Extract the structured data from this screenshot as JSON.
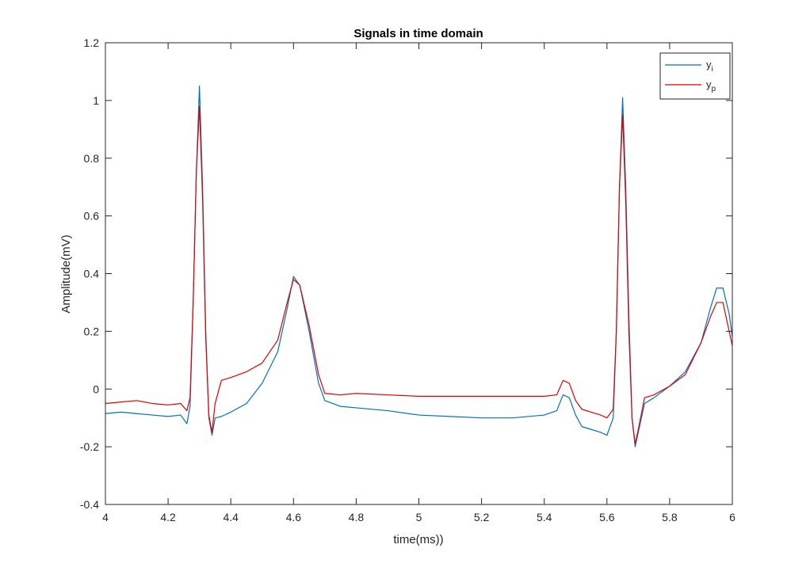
{
  "chart_data": {
    "type": "line",
    "title": "Signals in time domain",
    "xlabel": "time(ms))",
    "ylabel": "Amplitude(mV)",
    "xlim": [
      4,
      6
    ],
    "ylim": [
      -0.4,
      1.2
    ],
    "xticks": [
      "4",
      "4.2",
      "4.4",
      "4.6",
      "4.8",
      "5",
      "5.2",
      "5.4",
      "5.6",
      "5.8",
      "6"
    ],
    "yticks": [
      "-0.4",
      "-0.2",
      "0",
      "0.2",
      "0.4",
      "0.6",
      "0.8",
      "1",
      "1.2"
    ],
    "legend_position": "top-right",
    "grid": false,
    "series": [
      {
        "name": "y",
        "subscript": "i",
        "color": "#0072BD",
        "x": [
          4.0,
          4.05,
          4.1,
          4.15,
          4.2,
          4.24,
          4.26,
          4.27,
          4.28,
          4.29,
          4.3,
          4.31,
          4.32,
          4.33,
          4.34,
          4.35,
          4.37,
          4.4,
          4.45,
          4.5,
          4.55,
          4.58,
          4.6,
          4.62,
          4.65,
          4.68,
          4.7,
          4.75,
          4.8,
          4.9,
          5.0,
          5.1,
          5.2,
          5.3,
          5.4,
          5.44,
          5.46,
          5.48,
          5.5,
          5.52,
          5.55,
          5.58,
          5.6,
          5.62,
          5.63,
          5.64,
          5.65,
          5.66,
          5.67,
          5.68,
          5.69,
          5.7,
          5.72,
          5.75,
          5.8,
          5.85,
          5.9,
          5.93,
          5.95,
          5.97,
          5.99,
          6.0
        ],
        "values": [
          -0.085,
          -0.08,
          -0.085,
          -0.09,
          -0.095,
          -0.09,
          -0.12,
          -0.06,
          0.3,
          0.75,
          1.05,
          0.7,
          0.2,
          -0.1,
          -0.16,
          -0.1,
          -0.095,
          -0.08,
          -0.05,
          0.02,
          0.13,
          0.28,
          0.39,
          0.36,
          0.2,
          0.02,
          -0.04,
          -0.06,
          -0.065,
          -0.075,
          -0.09,
          -0.095,
          -0.1,
          -0.1,
          -0.09,
          -0.075,
          -0.02,
          -0.03,
          -0.09,
          -0.13,
          -0.14,
          -0.15,
          -0.16,
          -0.1,
          0.2,
          0.7,
          1.01,
          0.7,
          0.25,
          -0.1,
          -0.2,
          -0.15,
          -0.05,
          -0.03,
          0.01,
          0.06,
          0.16,
          0.28,
          0.35,
          0.35,
          0.26,
          0.18
        ]
      },
      {
        "name": "y",
        "subscript": "p",
        "color": "#E00000",
        "x": [
          4.0,
          4.05,
          4.1,
          4.15,
          4.2,
          4.24,
          4.26,
          4.27,
          4.28,
          4.29,
          4.3,
          4.31,
          4.32,
          4.33,
          4.34,
          4.35,
          4.37,
          4.4,
          4.45,
          4.5,
          4.55,
          4.58,
          4.6,
          4.62,
          4.65,
          4.68,
          4.7,
          4.75,
          4.8,
          4.9,
          5.0,
          5.1,
          5.2,
          5.3,
          5.4,
          5.44,
          5.46,
          5.48,
          5.5,
          5.52,
          5.55,
          5.58,
          5.6,
          5.62,
          5.63,
          5.64,
          5.65,
          5.66,
          5.67,
          5.68,
          5.69,
          5.7,
          5.72,
          5.75,
          5.8,
          5.85,
          5.9,
          5.93,
          5.95,
          5.97,
          5.99,
          6.0
        ],
        "values": [
          -0.05,
          -0.045,
          -0.04,
          -0.05,
          -0.055,
          -0.05,
          -0.075,
          -0.03,
          0.3,
          0.75,
          0.98,
          0.66,
          0.18,
          -0.09,
          -0.15,
          -0.05,
          0.03,
          0.04,
          0.06,
          0.09,
          0.17,
          0.3,
          0.38,
          0.36,
          0.22,
          0.05,
          -0.015,
          -0.02,
          -0.015,
          -0.02,
          -0.025,
          -0.025,
          -0.025,
          -0.025,
          -0.025,
          -0.02,
          0.03,
          0.02,
          -0.04,
          -0.07,
          -0.08,
          -0.09,
          -0.1,
          -0.07,
          0.2,
          0.7,
          0.95,
          0.65,
          0.2,
          -0.1,
          -0.19,
          -0.14,
          -0.03,
          -0.02,
          0.01,
          0.05,
          0.16,
          0.25,
          0.3,
          0.3,
          0.2,
          0.15
        ]
      }
    ]
  }
}
